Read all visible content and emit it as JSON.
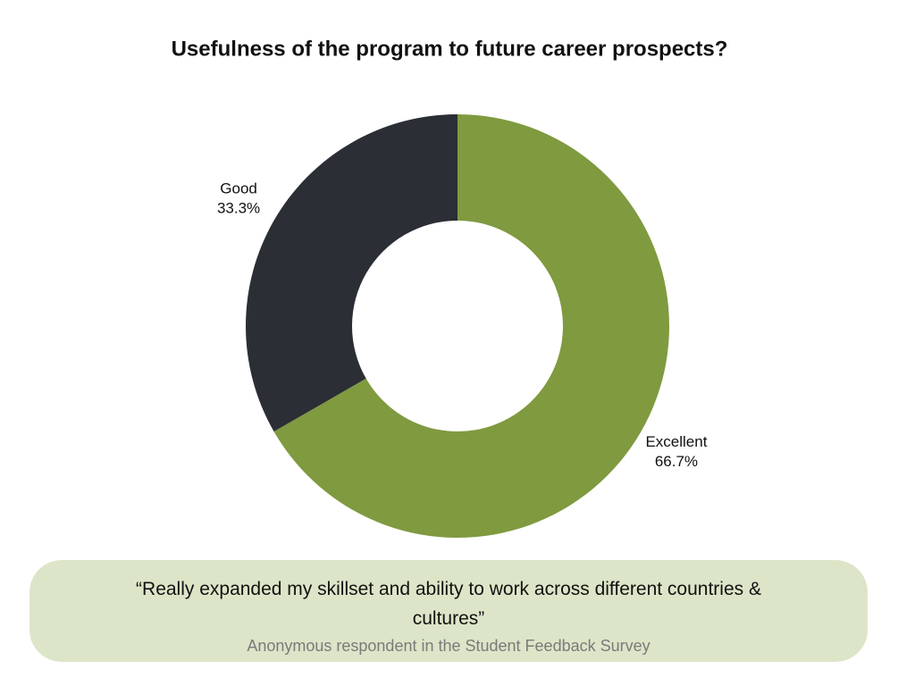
{
  "chart_data": {
    "type": "donut",
    "title": "Usefulness of the program to future career prospects?",
    "categories": [
      "Excellent",
      "Good"
    ],
    "values": [
      66.7,
      33.3
    ],
    "value_labels": [
      "66.7%",
      "33.3%"
    ],
    "colors": [
      "#7f9a3f",
      "#2b2e35"
    ]
  },
  "quote": {
    "text": "“Really expanded my skillset and ability to work across different countries & cultures”",
    "source": "Anonymous respondent in the Student Feedback Survey"
  }
}
